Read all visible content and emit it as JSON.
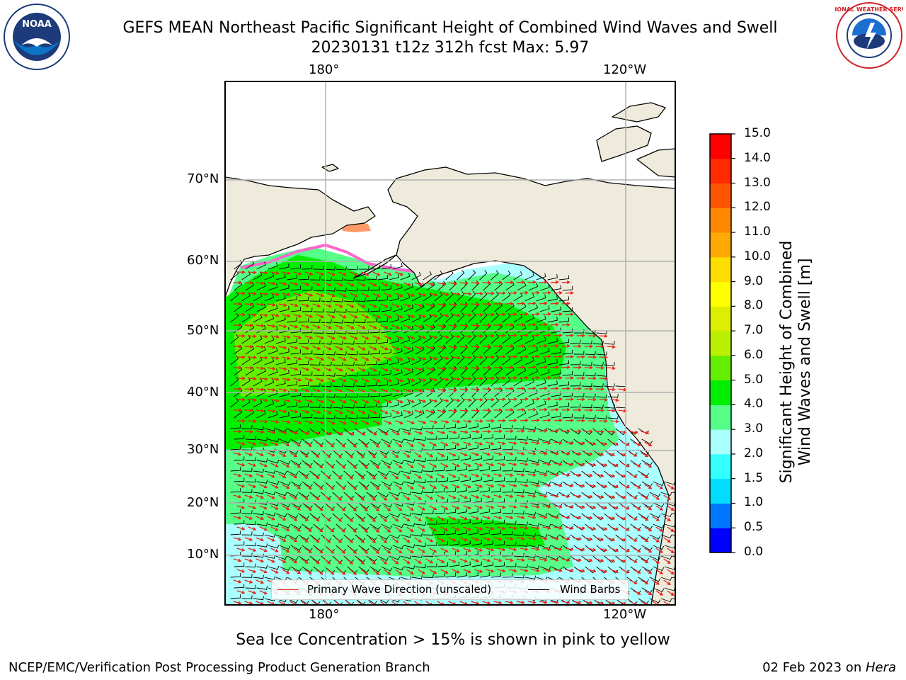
{
  "title": {
    "line1": "GEFS MEAN Northeast Pacific Significant Height of Combined Wind Waves and Swell",
    "line2": "20230131 t12z 312h fcst   Max: 5.97"
  },
  "logos": {
    "left": {
      "icon": "noaa-logo",
      "text": "NOAA"
    },
    "right": {
      "icon": "nws-logo",
      "text": "NATIONAL WEATHER SERVICE"
    }
  },
  "map": {
    "lon_labels_top": [
      "180°",
      "120°W"
    ],
    "lon_labels_bottom": [
      "180°",
      "120°W"
    ],
    "lat_labels": [
      "70°N",
      "60°N",
      "50°N",
      "40°N",
      "30°N",
      "20°N",
      "10°N"
    ],
    "colors": {
      "land": "#efebdc",
      "gridline": "#b0b0b0",
      "wave_arrow": "#e8231b",
      "wind_barb": "#000000",
      "sea_ice": "#ff66cc"
    }
  },
  "legend": {
    "wave_direction": "Primary Wave Direction (unscaled)",
    "wind_barbs": "Wind Barbs"
  },
  "colorbar": {
    "label_line1": "Significant Height of Combined",
    "label_line2": "Wind Waves and Swell [m]",
    "ticks": [
      "0.0",
      "0.5",
      "1.0",
      "1.5",
      "2.0",
      "3.0",
      "4.0",
      "5.0",
      "6.0",
      "7.0",
      "8.0",
      "9.0",
      "10.0",
      "11.0",
      "12.0",
      "13.0",
      "14.0",
      "15.0"
    ],
    "colors": [
      "#0000ff",
      "#0077ff",
      "#00ddff",
      "#33ffff",
      "#aaffff",
      "#55ff88",
      "#00ee00",
      "#66ee00",
      "#bbf000",
      "#ddee00",
      "#ffff00",
      "#ffdd00",
      "#ffaa00",
      "#ff8800",
      "#ff5500",
      "#ff2a00",
      "#ff0000"
    ]
  },
  "note": "Sea Ice Concentration > 15% is shown in pink to yellow",
  "footer": {
    "left": "NCEP/EMC/Verification Post Processing Product Generation Branch",
    "right_prefix": "02 Feb 2023 on ",
    "right_host": "Hera"
  }
}
